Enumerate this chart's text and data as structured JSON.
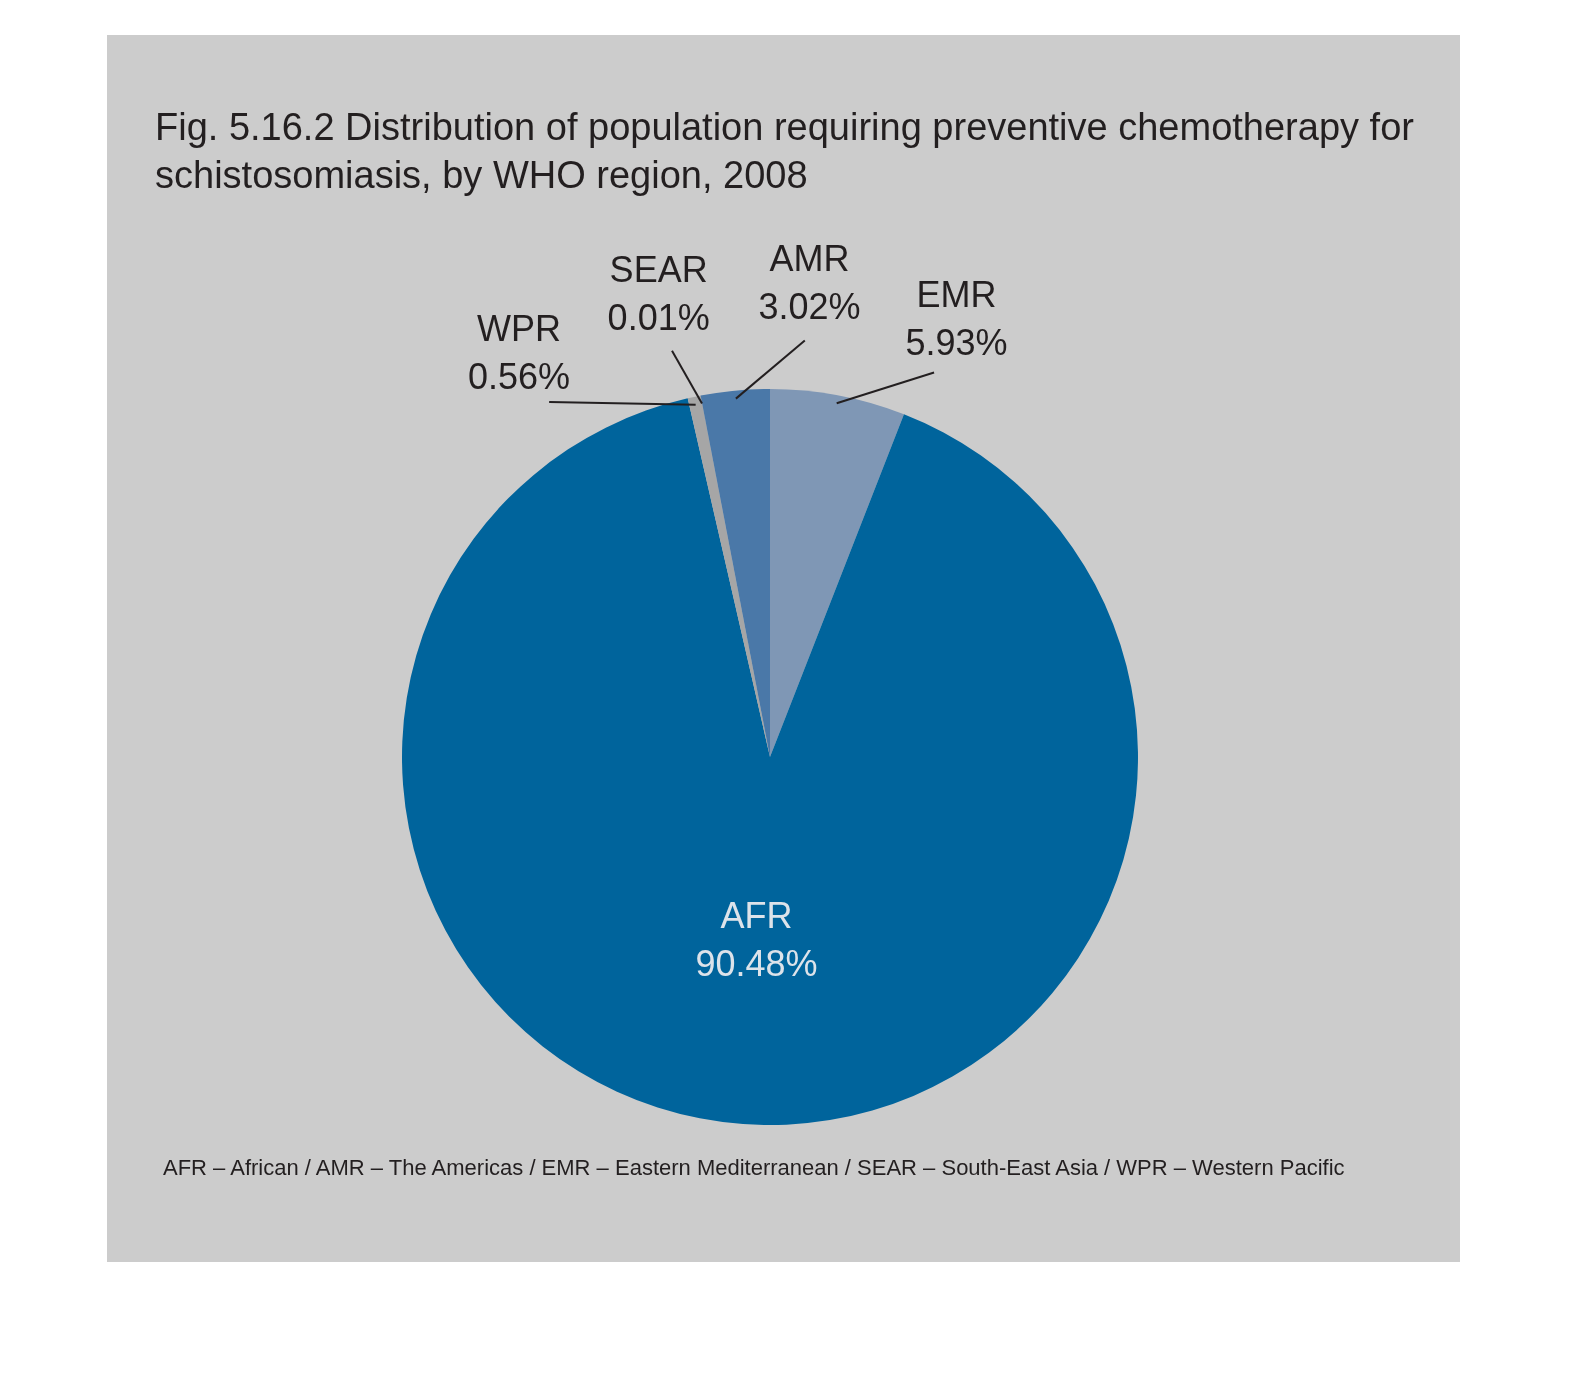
{
  "chart_data": {
    "type": "pie",
    "title": "Fig. 5.16.2 Distribution of population requiring preventive chemotherapy for schistosomiasis, by WHO region, 2008",
    "categories": [
      "EMR",
      "AFR",
      "WPR",
      "SEAR",
      "AMR"
    ],
    "values": [
      5.93,
      90.48,
      0.56,
      0.01,
      3.02
    ],
    "colors": [
      "#7f97b5",
      "#00649c",
      "#a6a6a6",
      "#8c8c8c",
      "#4a78a8"
    ],
    "value_labels": [
      "5.93%",
      "90.48%",
      "0.56%",
      "0.01%",
      "3.02%"
    ],
    "annotations": [
      "AFR – African / AMR – The Americas / EMR – Eastern Mediterranean / SEAR – South-East Asia / WPR – Western Pacific"
    ]
  }
}
